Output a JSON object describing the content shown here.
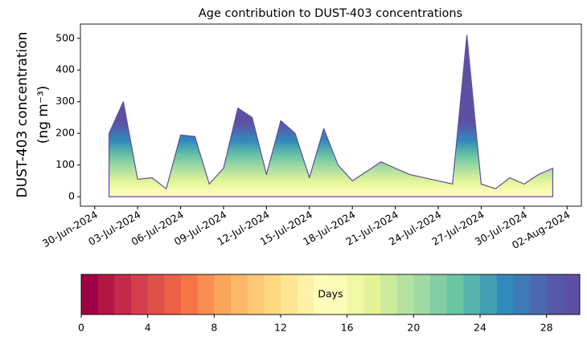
{
  "chart_data": {
    "type": "area",
    "title": "Age contribution to DUST-403 concentrations",
    "ylabel": [
      "DUST-403 concentration",
      "(ng m⁻³)"
    ],
    "x": [
      "2024-07-01",
      "2024-07-02",
      "2024-07-03",
      "2024-07-04",
      "2024-07-05",
      "2024-07-06",
      "2024-07-07",
      "2024-07-08",
      "2024-07-09",
      "2024-07-10",
      "2024-07-11",
      "2024-07-12",
      "2024-07-13",
      "2024-07-14",
      "2024-07-15",
      "2024-07-16",
      "2024-07-17",
      "2024-07-18",
      "2024-07-19",
      "2024-07-20",
      "2024-07-21",
      "2024-07-22",
      "2024-07-23",
      "2024-07-24",
      "2024-07-25",
      "2024-07-26",
      "2024-07-27",
      "2024-07-28",
      "2024-07-29",
      "2024-07-30",
      "2024-07-31",
      "2024-08-01"
    ],
    "series": [
      {
        "values": [
          200,
          300,
          55,
          60,
          25,
          195,
          190,
          40,
          90,
          280,
          250,
          70,
          240,
          200,
          60,
          215,
          100,
          50,
          80,
          110,
          90,
          70,
          60,
          50,
          40,
          510,
          40,
          25,
          60,
          40,
          70,
          90
        ]
      }
    ],
    "xlim": [
      "2024-06-29",
      "2024-08-03"
    ],
    "xticks": [
      {
        "value": "2024-06-30",
        "label": "30-Jun-2024"
      },
      {
        "value": "2024-07-03",
        "label": "03-Jul-2024"
      },
      {
        "value": "2024-07-06",
        "label": "06-Jul-2024"
      },
      {
        "value": "2024-07-09",
        "label": "09-Jul-2024"
      },
      {
        "value": "2024-07-12",
        "label": "12-Jul-2024"
      },
      {
        "value": "2024-07-15",
        "label": "15-Jul-2024"
      },
      {
        "value": "2024-07-18",
        "label": "18-Jul-2024"
      },
      {
        "value": "2024-07-21",
        "label": "21-Jul-2024"
      },
      {
        "value": "2024-07-24",
        "label": "24-Jul-2024"
      },
      {
        "value": "2024-07-27",
        "label": "27-Jul-2024"
      },
      {
        "value": "2024-07-30",
        "label": "30-Jul-2024"
      },
      {
        "value": "2024-08-02",
        "label": "02-Aug-2024"
      }
    ],
    "ylim": [
      -30,
      545
    ],
    "yticks": [
      0,
      100,
      200,
      300,
      400,
      500
    ],
    "colorbar": {
      "label": "Days",
      "lim": [
        0,
        30
      ],
      "ticks": [
        0,
        4,
        8,
        12,
        16,
        20,
        24,
        28
      ],
      "colors": [
        "#9e0142",
        "#b01745",
        "#c22a4a",
        "#d53e4f",
        "#e0504a",
        "#eb6046",
        "#f57547",
        "#f88e52",
        "#fba55d",
        "#fdb768",
        "#fdc877",
        "#fed883",
        "#fee693",
        "#fef1a8",
        "#fffbb9",
        "#fafcb7",
        "#eff8a5",
        "#e3f497",
        "#cdeb9c",
        "#b6e2a1",
        "#9fd9a3",
        "#85cea5",
        "#6cc4a4",
        "#58b3aa",
        "#449eb3",
        "#3389bc",
        "#3e7ab7",
        "#4b6aae",
        "#5759a6",
        "#5e4fa2"
      ]
    }
  }
}
